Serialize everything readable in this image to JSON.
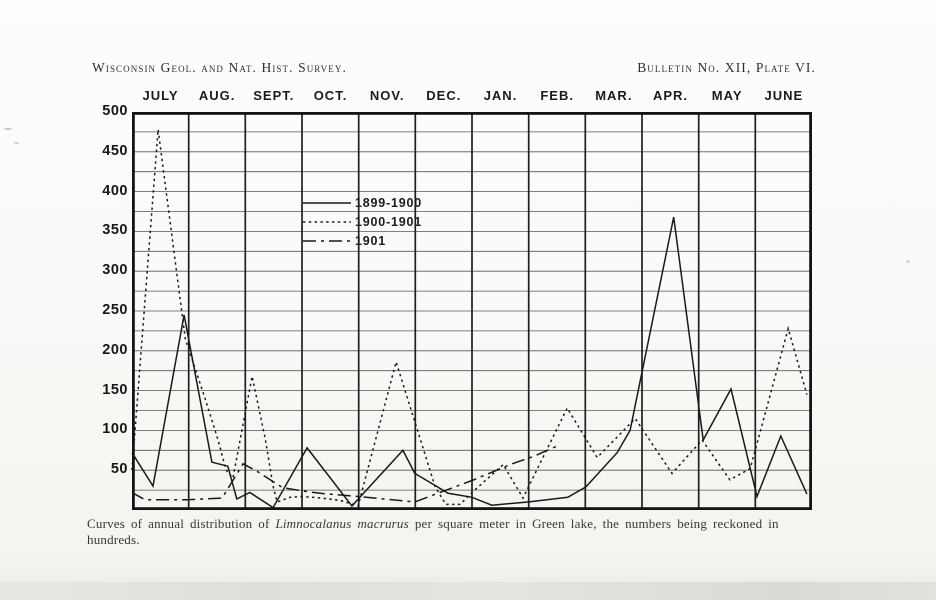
{
  "header": {
    "left": "Wisconsin Geol. and Nat. Hist. Survey.",
    "right": "Bulletin No. XII, Plate VI."
  },
  "caption": {
    "part1": "Curves of annual distribution of ",
    "italic": "Limnocalanus macrurus",
    "part2": " per square meter in Green lake, the numbers being reckoned in hundreds."
  },
  "colors": {
    "ink": "#191919",
    "paper": "#faf9f7",
    "grid": "#3a3a3a"
  },
  "chart_data": {
    "type": "line",
    "title": "Curves of annual distribution of Limnocalanus macrurus per square meter in Green lake, the numbers being reckoned in hundreds.",
    "xlabel": "",
    "ylabel": "",
    "grid": "on",
    "legend_position": "upper-center-left",
    "x_axis": {
      "months": [
        "JULY",
        "AUG.",
        "SEPT.",
        "OCT.",
        "NOV.",
        "DEC.",
        "JAN.",
        "FEB.",
        "MAR.",
        "APR.",
        "MAY",
        "JUNE"
      ],
      "range": [
        0,
        12
      ]
    },
    "y_axis": {
      "ticks": [
        500,
        450,
        400,
        350,
        300,
        250,
        200,
        150,
        100,
        50
      ],
      "range": [
        0,
        500
      ],
      "gridline_step": 25
    },
    "series": [
      {
        "name": "1899-1900",
        "style": "solid",
        "points": [
          [
            0.0,
            72
          ],
          [
            0.37,
            30
          ],
          [
            0.92,
            245
          ],
          [
            1.41,
            60
          ],
          [
            1.69,
            55
          ],
          [
            1.85,
            14
          ],
          [
            2.08,
            22
          ],
          [
            2.49,
            3
          ],
          [
            3.09,
            78
          ],
          [
            3.88,
            5
          ],
          [
            4.78,
            75
          ],
          [
            4.99,
            46
          ],
          [
            5.58,
            21
          ],
          [
            6.0,
            16
          ],
          [
            6.35,
            6
          ],
          [
            6.99,
            10
          ],
          [
            7.69,
            16
          ],
          [
            8.01,
            29
          ],
          [
            8.56,
            72
          ],
          [
            8.79,
            100
          ],
          [
            9.56,
            368
          ],
          [
            10.08,
            88
          ],
          [
            10.57,
            152
          ],
          [
            11.03,
            17
          ],
          [
            11.45,
            93
          ],
          [
            11.91,
            20
          ]
        ]
      },
      {
        "name": "1900-1901",
        "style": "dotted",
        "points": [
          [
            0.0,
            50
          ],
          [
            0.46,
            478
          ],
          [
            0.94,
            215
          ],
          [
            1.29,
            140
          ],
          [
            1.52,
            88
          ],
          [
            1.66,
            50
          ],
          [
            1.78,
            40
          ],
          [
            2.12,
            168
          ],
          [
            2.35,
            90
          ],
          [
            2.49,
            30
          ],
          [
            2.56,
            10
          ],
          [
            2.79,
            16
          ],
          [
            3.0,
            17
          ],
          [
            3.35,
            15
          ],
          [
            3.67,
            12
          ],
          [
            3.99,
            5
          ],
          [
            4.66,
            186
          ],
          [
            5.35,
            29
          ],
          [
            5.54,
            7
          ],
          [
            5.79,
            7
          ],
          [
            6.0,
            22
          ],
          [
            6.55,
            57
          ],
          [
            6.9,
            15
          ],
          [
            7.68,
            128
          ],
          [
            8.21,
            66
          ],
          [
            8.88,
            115
          ],
          [
            9.53,
            46
          ],
          [
            10.06,
            88
          ],
          [
            10.55,
            38
          ],
          [
            10.91,
            52
          ],
          [
            11.58,
            228
          ],
          [
            11.91,
            145
          ]
        ]
      },
      {
        "name": "1901",
        "style": "dash-dot",
        "points": [
          [
            0.0,
            22
          ],
          [
            0.23,
            13
          ],
          [
            0.97,
            13
          ],
          [
            1.59,
            15
          ],
          [
            1.96,
            58
          ],
          [
            2.22,
            48
          ],
          [
            2.66,
            28
          ],
          [
            3.0,
            24
          ],
          [
            3.32,
            21
          ],
          [
            3.99,
            17
          ],
          [
            4.99,
            10
          ],
          [
            5.47,
            23
          ],
          [
            6.0,
            37
          ],
          [
            6.71,
            58
          ],
          [
            7.11,
            68
          ],
          [
            7.52,
            81
          ]
        ]
      }
    ]
  }
}
